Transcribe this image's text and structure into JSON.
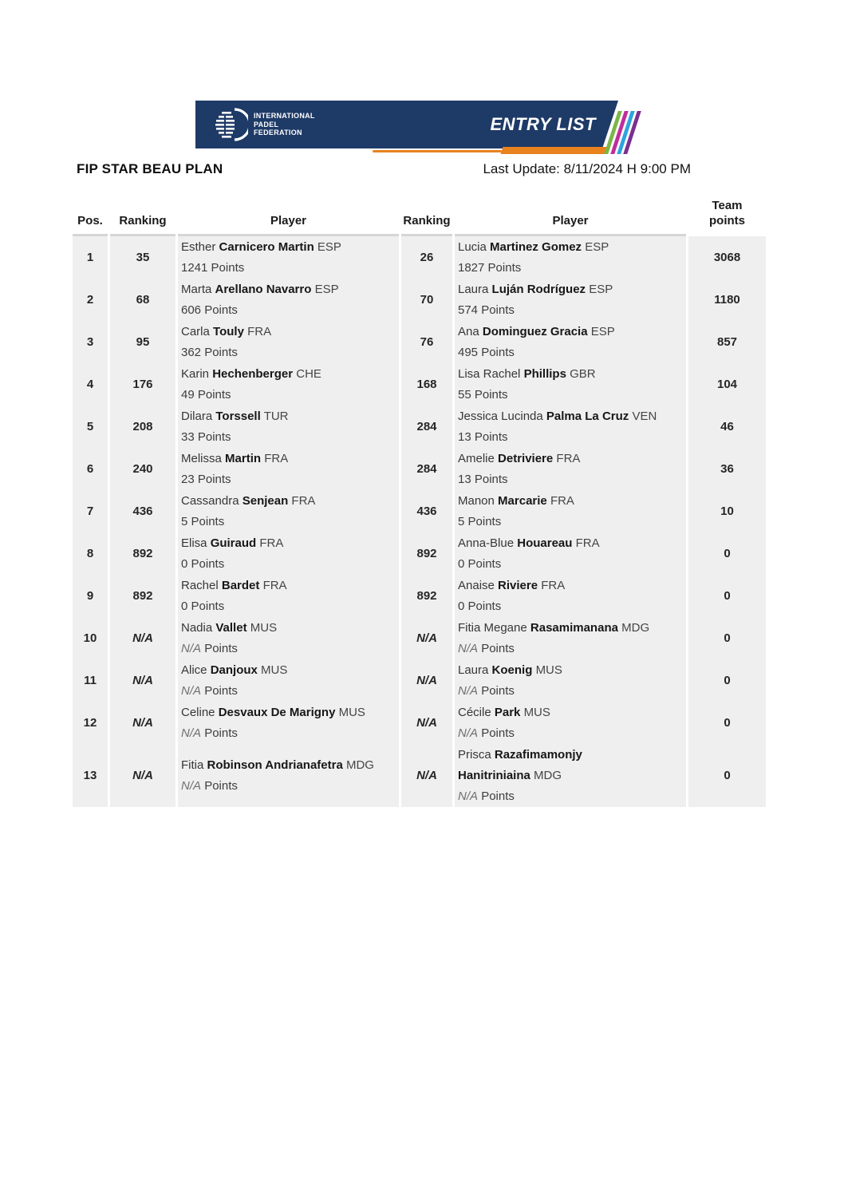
{
  "banner": {
    "logo_lines": [
      "INTERNATIONAL",
      "PADEL",
      "FEDERATION"
    ],
    "title": "ENTRY LIST",
    "colors": {
      "navy": "#1e3a67",
      "orange": "#e8821f",
      "stripes": [
        "#7ab648",
        "#c02d9c",
        "#31a3dc",
        "#7b2f90"
      ]
    }
  },
  "header": {
    "event_title": "FIP STAR BEAU PLAN",
    "last_update": "Last Update: 8/11/2024 H 9:00 PM"
  },
  "table": {
    "columns": [
      "Pos.",
      "Ranking",
      "Player",
      "Ranking",
      "Player",
      "Team points"
    ],
    "points_label": "Points",
    "rows": [
      {
        "pos": "1",
        "rank1": "35",
        "p1_first": "Esther",
        "p1_last": "Carnicero Martin",
        "p1_cc": "ESP",
        "p1_points": "1241",
        "rank2": "26",
        "p2_first": "Lucia",
        "p2_last": "Martinez Gomez",
        "p2_cc": "ESP",
        "p2_points": "1827",
        "team": "3068"
      },
      {
        "pos": "2",
        "rank1": "68",
        "p1_first": "Marta",
        "p1_last": "Arellano Navarro",
        "p1_cc": "ESP",
        "p1_points": "606",
        "rank2": "70",
        "p2_first": "Laura",
        "p2_last": "Luján Rodríguez",
        "p2_cc": "ESP",
        "p2_points": "574",
        "team": "1180"
      },
      {
        "pos": "3",
        "rank1": "95",
        "p1_first": "Carla",
        "p1_last": "Touly",
        "p1_cc": "FRA",
        "p1_points": "362",
        "rank2": "76",
        "p2_first": "Ana",
        "p2_last": "Dominguez Gracia",
        "p2_cc": "ESP",
        "p2_points": "495",
        "team": "857"
      },
      {
        "pos": "4",
        "rank1": "176",
        "p1_first": "Karin",
        "p1_last": "Hechenberger",
        "p1_cc": "CHE",
        "p1_points": "49",
        "rank2": "168",
        "p2_first": "Lisa Rachel",
        "p2_last": "Phillips",
        "p2_cc": "GBR",
        "p2_points": "55",
        "team": "104"
      },
      {
        "pos": "5",
        "rank1": "208",
        "p1_first": "Dilara",
        "p1_last": "Torssell",
        "p1_cc": "TUR",
        "p1_points": "33",
        "rank2": "284",
        "p2_first": "Jessica Lucinda",
        "p2_last": "Palma La Cruz",
        "p2_cc": "VEN",
        "p2_points": "13",
        "team": "46"
      },
      {
        "pos": "6",
        "rank1": "240",
        "p1_first": "Melissa",
        "p1_last": "Martin",
        "p1_cc": "FRA",
        "p1_points": "23",
        "rank2": "284",
        "p2_first": "Amelie",
        "p2_last": "Detriviere",
        "p2_cc": "FRA",
        "p2_points": "13",
        "team": "36"
      },
      {
        "pos": "7",
        "rank1": "436",
        "p1_first": "Cassandra",
        "p1_last": "Senjean",
        "p1_cc": "FRA",
        "p1_points": "5",
        "rank2": "436",
        "p2_first": "Manon",
        "p2_last": "Marcarie",
        "p2_cc": "FRA",
        "p2_points": "5",
        "team": "10"
      },
      {
        "pos": "8",
        "rank1": "892",
        "p1_first": "Elisa",
        "p1_last": "Guiraud",
        "p1_cc": "FRA",
        "p1_points": "0",
        "rank2": "892",
        "p2_first": "Anna-Blue",
        "p2_last": "Houareau",
        "p2_cc": "FRA",
        "p2_points": "0",
        "team": "0"
      },
      {
        "pos": "9",
        "rank1": "892",
        "p1_first": "Rachel",
        "p1_last": "Bardet",
        "p1_cc": "FRA",
        "p1_points": "0",
        "rank2": "892",
        "p2_first": "Anaise",
        "p2_last": "Riviere",
        "p2_cc": "FRA",
        "p2_points": "0",
        "team": "0"
      },
      {
        "pos": "10",
        "rank1": "N/A",
        "p1_first": "Nadia",
        "p1_last": "Vallet",
        "p1_cc": "MUS",
        "p1_points": "N/A",
        "rank2": "N/A",
        "p2_first": "Fitia Megane",
        "p2_last": "Rasamimanana",
        "p2_cc": "MDG",
        "p2_points": "N/A",
        "team": "0"
      },
      {
        "pos": "11",
        "rank1": "N/A",
        "p1_first": "Alice",
        "p1_last": "Danjoux",
        "p1_cc": "MUS",
        "p1_points": "N/A",
        "rank2": "N/A",
        "p2_first": "Laura",
        "p2_last": "Koenig",
        "p2_cc": "MUS",
        "p2_points": "N/A",
        "team": "0"
      },
      {
        "pos": "12",
        "rank1": "N/A",
        "p1_first": "Celine",
        "p1_last": "Desvaux De Marigny",
        "p1_cc": "MUS",
        "p1_points": "N/A",
        "rank2": "N/A",
        "p2_first": "Cécile",
        "p2_last": "Park",
        "p2_cc": "MUS",
        "p2_points": "N/A",
        "team": "0"
      },
      {
        "pos": "13",
        "rank1": "N/A",
        "p1_first": "Fitia",
        "p1_last": "Robinson Andrianafetra",
        "p1_cc": "MDG",
        "p1_points": "N/A",
        "rank2": "N/A",
        "p2_first": "Prisca",
        "p2_last": "Razafimamonjy Hanitriniaina",
        "p2_cc": "MDG",
        "p2_points": "N/A",
        "team": "0"
      }
    ]
  }
}
